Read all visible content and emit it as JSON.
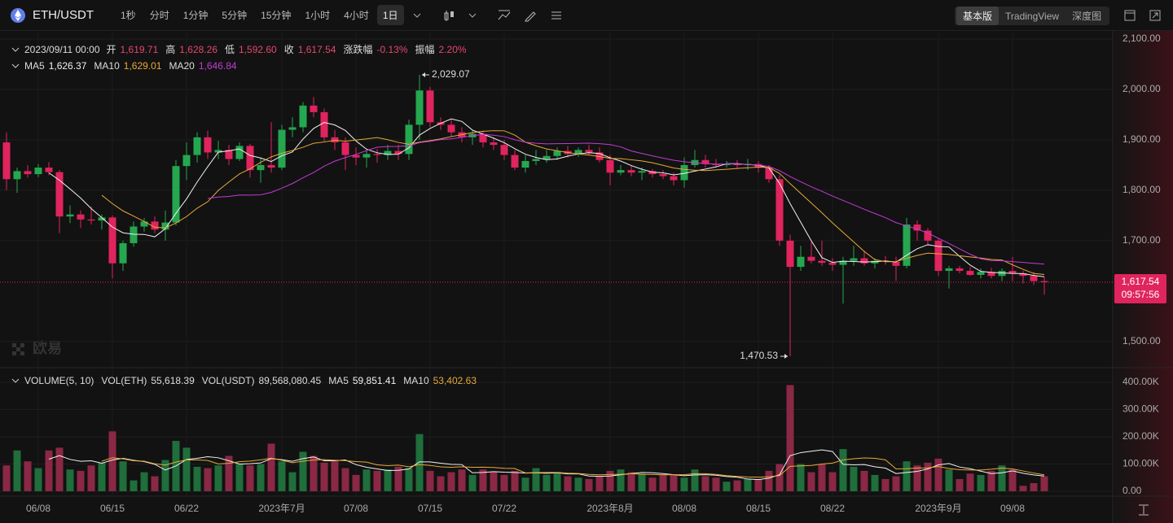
{
  "toolbar": {
    "symbol": "ETH/USDT",
    "intervals": [
      "1秒",
      "分时",
      "1分钟",
      "5分钟",
      "15分钟",
      "1小时",
      "4小时",
      "1日"
    ],
    "views": [
      "基本版",
      "TradingView",
      "深度图"
    ]
  },
  "chart_data": {
    "type": "candlestick",
    "info": {
      "time": "2023/09/11 00:00",
      "items": [
        [
          "开",
          "1,619.71"
        ],
        [
          "高",
          "1,628.26"
        ],
        [
          "低",
          "1,592.60"
        ],
        [
          "收",
          "1,617.54"
        ],
        [
          "涨跌幅",
          "-0.13%"
        ],
        [
          "振幅",
          "2.20%"
        ]
      ]
    },
    "ma": [
      {
        "name": "MA5",
        "period": 5,
        "color": "#f2f2f2",
        "label": "1,626.37"
      },
      {
        "name": "MA10",
        "period": 10,
        "color": "#e8a93a",
        "label": "1,629.01"
      },
      {
        "name": "MA20",
        "period": 20,
        "color": "#c23ad6",
        "label": "1,646.84"
      }
    ],
    "volume_legend": {
      "title": "VOLUME(5, 10)",
      "items": [
        [
          "VOL(ETH)",
          "55,618.39"
        ],
        [
          "VOL(USDT)",
          "89,568,080.45"
        ]
      ]
    },
    "volume_ma": [
      {
        "name": "MA5",
        "period": 5,
        "color": "#f2f2f2",
        "label": "59,851.41"
      },
      {
        "name": "MA10",
        "period": 10,
        "color": "#e8a93a",
        "label": "53,402.63"
      }
    ],
    "up_color": "#25a750",
    "down_color": "#e0245e",
    "volume_up_color": "#1f6e3b",
    "volume_down_color": "#8a2845",
    "categories": [
      null,
      null,
      null,
      "06/08",
      null,
      null,
      null,
      null,
      null,
      null,
      "06/15",
      null,
      null,
      null,
      null,
      null,
      null,
      "06/22",
      null,
      null,
      null,
      null,
      null,
      null,
      null,
      null,
      "2023年7月",
      null,
      null,
      null,
      null,
      null,
      null,
      "07/08",
      null,
      null,
      null,
      null,
      null,
      null,
      "07/15",
      null,
      null,
      null,
      null,
      null,
      null,
      "07/22",
      null,
      null,
      null,
      null,
      null,
      null,
      null,
      null,
      null,
      "2023年8月",
      null,
      null,
      null,
      null,
      null,
      null,
      "08/08",
      null,
      null,
      null,
      null,
      null,
      null,
      "08/15",
      null,
      null,
      null,
      null,
      null,
      null,
      "08/22",
      null,
      null,
      null,
      null,
      null,
      null,
      null,
      null,
      null,
      "2023年9月",
      null,
      null,
      null,
      null,
      null,
      null,
      "09/08",
      null,
      null,
      null
    ],
    "open": [
      1895,
      1822,
      1838,
      1832,
      1845,
      1836,
      1748,
      1752,
      1742,
      1740,
      1746,
      1655,
      1695,
      1728,
      1738,
      1722,
      1736,
      1848,
      1870,
      1905,
      1875,
      1880,
      1862,
      1888,
      1840,
      1850,
      1845,
      1920,
      1925,
      1968,
      1955,
      1905,
      1895,
      1870,
      1865,
      1872,
      1870,
      1878,
      1872,
      1930,
      1998,
      1935,
      1930,
      1915,
      1905,
      1912,
      1895,
      1890,
      1870,
      1845,
      1858,
      1862,
      1868,
      1878,
      1872,
      1880,
      1875,
      1860,
      1835,
      1840,
      1835,
      1838,
      1832,
      1828,
      1820,
      1850,
      1860,
      1852,
      1850,
      1852,
      1850,
      1852,
      1845,
      1822,
      1700,
      1648,
      1668,
      1660,
      1656,
      1652,
      1660,
      1665,
      1655,
      1660,
      1658,
      1650,
      1732,
      1720,
      1700,
      1640,
      1645,
      1640,
      1632,
      1638,
      1630,
      1640,
      1635,
      1630,
      1619.71
    ],
    "high": [
      1915,
      1845,
      1850,
      1852,
      1856,
      1840,
      1770,
      1760,
      1768,
      1752,
      1750,
      1700,
      1738,
      1745,
      1748,
      1760,
      1860,
      1895,
      1915,
      1918,
      1898,
      1890,
      1895,
      1892,
      1865,
      1935,
      1930,
      1945,
      1975,
      1985,
      1962,
      1920,
      1905,
      1885,
      1880,
      1882,
      1890,
      1890,
      1940,
      2029.07,
      2005,
      1945,
      1940,
      1925,
      1920,
      1918,
      1905,
      1900,
      1880,
      1870,
      1880,
      1880,
      1885,
      1888,
      1885,
      1890,
      1885,
      1870,
      1850,
      1850,
      1845,
      1842,
      1840,
      1835,
      1865,
      1880,
      1870,
      1862,
      1858,
      1860,
      1862,
      1858,
      1850,
      1830,
      1712,
      1690,
      1698,
      1700,
      1665,
      1668,
      1690,
      1680,
      1665,
      1670,
      1668,
      1745,
      1740,
      1725,
      1705,
      1650,
      1650,
      1648,
      1645,
      1646,
      1645,
      1668,
      1640,
      1638,
      1628.26
    ],
    "low": [
      1800,
      1795,
      1825,
      1826,
      1830,
      1715,
      1735,
      1725,
      1732,
      1722,
      1625,
      1640,
      1688,
      1718,
      1715,
      1700,
      1730,
      1820,
      1855,
      1862,
      1862,
      1850,
      1858,
      1825,
      1815,
      1835,
      1840,
      1905,
      1915,
      1945,
      1895,
      1880,
      1840,
      1850,
      1845,
      1855,
      1860,
      1860,
      1860,
      1900,
      1925,
      1920,
      1905,
      1895,
      1890,
      1885,
      1880,
      1860,
      1840,
      1835,
      1850,
      1855,
      1860,
      1865,
      1866,
      1870,
      1855,
      1810,
      1830,
      1828,
      1820,
      1825,
      1822,
      1810,
      1805,
      1845,
      1845,
      1845,
      1845,
      1842,
      1840,
      1835,
      1815,
      1690,
      1470.53,
      1640,
      1655,
      1650,
      1640,
      1575,
      1650,
      1650,
      1645,
      1652,
      1620,
      1645,
      1700,
      1690,
      1630,
      1605,
      1635,
      1630,
      1625,
      1625,
      1620,
      1620,
      1615,
      1612,
      1592.6
    ],
    "close": [
      1822,
      1838,
      1832,
      1845,
      1836,
      1748,
      1752,
      1742,
      1740,
      1746,
      1655,
      1695,
      1728,
      1738,
      1722,
      1736,
      1848,
      1870,
      1905,
      1875,
      1880,
      1862,
      1888,
      1840,
      1850,
      1845,
      1920,
      1925,
      1968,
      1955,
      1905,
      1895,
      1870,
      1865,
      1872,
      1870,
      1878,
      1872,
      1930,
      1998,
      1935,
      1930,
      1915,
      1905,
      1912,
      1895,
      1890,
      1870,
      1845,
      1858,
      1862,
      1868,
      1878,
      1872,
      1880,
      1875,
      1860,
      1835,
      1840,
      1835,
      1838,
      1832,
      1828,
      1820,
      1850,
      1860,
      1852,
      1850,
      1852,
      1850,
      1852,
      1845,
      1822,
      1700,
      1648,
      1668,
      1660,
      1656,
      1652,
      1660,
      1665,
      1655,
      1660,
      1658,
      1650,
      1732,
      1720,
      1700,
      1640,
      1645,
      1640,
      1632,
      1638,
      1630,
      1640,
      1635,
      1630,
      1619.71,
      1617.54
    ],
    "volume": [
      95,
      150,
      110,
      85,
      150,
      160,
      80,
      75,
      95,
      105,
      220,
      110,
      40,
      70,
      55,
      115,
      185,
      160,
      90,
      85,
      95,
      130,
      100,
      95,
      100,
      175,
      110,
      70,
      145,
      130,
      105,
      110,
      85,
      60,
      80,
      75,
      80,
      90,
      85,
      210,
      75,
      55,
      70,
      80,
      60,
      80,
      70,
      60,
      75,
      50,
      85,
      60,
      70,
      55,
      50,
      45,
      55,
      75,
      80,
      70,
      65,
      50,
      60,
      60,
      50,
      80,
      55,
      50,
      35,
      40,
      45,
      45,
      75,
      100,
      390,
      100,
      70,
      100,
      70,
      155,
      90,
      75,
      60,
      45,
      55,
      110,
      95,
      105,
      120,
      80,
      45,
      65,
      60,
      75,
      95,
      80,
      20,
      30,
      55
    ],
    "ylim": [
      1448,
      2113
    ],
    "yticks": [
      {
        "value": 1500,
        "label": "1,500.00"
      },
      {
        "value": 1700,
        "label": "1,700.00"
      },
      {
        "value": 1800,
        "label": "1,800.00"
      },
      {
        "value": 1900,
        "label": "1,900.00"
      },
      {
        "value": 2000,
        "label": "2,000.00"
      },
      {
        "value": 2100,
        "label": "2,100.00"
      }
    ],
    "vlim": [
      0,
      442
    ],
    "vticks": [
      {
        "value": 0,
        "label": "0.00"
      },
      {
        "value": 100,
        "label": "100.00K"
      },
      {
        "value": 200,
        "label": "200.00K"
      },
      {
        "value": 300,
        "label": "300.00K"
      },
      {
        "value": 400,
        "label": "400.00K"
      }
    ],
    "annotations": {
      "high": "2,029.07",
      "low": "1,470.53"
    },
    "price_tag": {
      "label": "1,617.54",
      "countdown": "09:57:56"
    },
    "watermark": "欧易"
  }
}
